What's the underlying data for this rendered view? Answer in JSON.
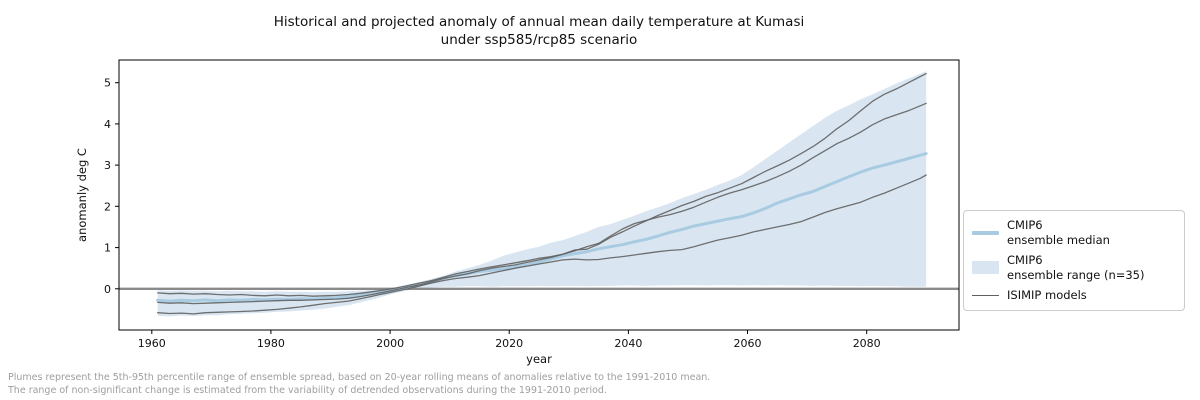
{
  "title": {
    "line1": "Historical and projected anomaly of annual mean daily temperature at Kumasi",
    "line2": "under ssp585/rcp85 scenario"
  },
  "legend": {
    "items": [
      {
        "swatch": "thick-line",
        "label": "CMIP6\nensemble median"
      },
      {
        "swatch": "patch",
        "label": "CMIP6\nensemble range (n=35)"
      },
      {
        "swatch": "thin-line",
        "label": "ISIMIP models"
      }
    ]
  },
  "footnote": {
    "line1": "Plumes represent the 5th-95th percentile range of ensemble spread, based on 20-year rolling means of anomalies relative to the 1991-2010 mean.",
    "line2": "The range of non-significant change is estimated from the variability of detrended observations during the 1991-2010 period."
  },
  "colors": {
    "band": "#d9e6f2",
    "median": "#a8cbe2",
    "isimip": "#606060",
    "zero_line": "#8a8a8a",
    "spine": "#000000",
    "tick_label": "#111111"
  },
  "chart_data": {
    "type": "line",
    "title": "Historical and projected anomaly of annual mean daily temperature at Kumasi under ssp585/rcp85 scenario",
    "xlabel": "year",
    "ylabel": "anomanly deg C",
    "xlim": [
      1954.5,
      2095.5
    ],
    "ylim": [
      -1.0,
      5.55
    ],
    "x_ticks": [
      1960,
      1980,
      2000,
      2020,
      2040,
      2060,
      2080
    ],
    "y_ticks": [
      0,
      1,
      2,
      3,
      4,
      5
    ],
    "grid": false,
    "legend_position": "right-outside",
    "zero_line": 0,
    "years": [
      1961,
      1963,
      1965,
      1967,
      1969,
      1971,
      1973,
      1975,
      1977,
      1979,
      1981,
      1983,
      1985,
      1987,
      1989,
      1991,
      1993,
      1995,
      1997,
      1999,
      2001,
      2003,
      2005,
      2007,
      2009,
      2011,
      2013,
      2015,
      2017,
      2019,
      2021,
      2023,
      2025,
      2027,
      2029,
      2031,
      2033,
      2035,
      2037,
      2039,
      2041,
      2043,
      2045,
      2047,
      2049,
      2051,
      2053,
      2055,
      2057,
      2059,
      2061,
      2063,
      2065,
      2067,
      2069,
      2071,
      2073,
      2075,
      2077,
      2079,
      2081,
      2083,
      2085,
      2087,
      2089,
      2090
    ],
    "band": {
      "label": "CMIP6 ensemble range (n=35)",
      "upper": [
        -0.04,
        -0.05,
        -0.04,
        -0.05,
        -0.05,
        -0.06,
        -0.05,
        -0.06,
        -0.06,
        -0.07,
        -0.06,
        -0.07,
        -0.07,
        -0.08,
        -0.07,
        -0.07,
        -0.06,
        -0.05,
        -0.03,
        0.0,
        0.04,
        0.1,
        0.17,
        0.24,
        0.32,
        0.42,
        0.5,
        0.58,
        0.68,
        0.8,
        0.88,
        0.96,
        1.02,
        1.12,
        1.18,
        1.28,
        1.38,
        1.5,
        1.57,
        1.67,
        1.77,
        1.88,
        1.98,
        2.08,
        2.2,
        2.3,
        2.4,
        2.52,
        2.62,
        2.76,
        2.95,
        3.15,
        3.35,
        3.55,
        3.75,
        3.95,
        4.15,
        4.32,
        4.45,
        4.6,
        4.72,
        4.85,
        4.98,
        5.1,
        5.22,
        5.28
      ],
      "lower": [
        -0.66,
        -0.67,
        -0.65,
        -0.66,
        -0.64,
        -0.64,
        -0.62,
        -0.61,
        -0.59,
        -0.58,
        -0.56,
        -0.55,
        -0.53,
        -0.51,
        -0.48,
        -0.44,
        -0.4,
        -0.33,
        -0.26,
        -0.18,
        -0.1,
        -0.04,
        0.0,
        0.03,
        0.05,
        0.05,
        0.06,
        0.06,
        0.05,
        0.06,
        0.06,
        0.06,
        0.07,
        0.06,
        0.07,
        0.07,
        0.06,
        0.07,
        0.07,
        0.08,
        0.08,
        0.07,
        0.08,
        0.08,
        0.09,
        0.09,
        0.08,
        0.09,
        0.09,
        0.08,
        0.09,
        0.08,
        0.09,
        0.08,
        0.08,
        0.07,
        0.08,
        0.07,
        0.07,
        0.06,
        0.07,
        0.06,
        0.06,
        0.05,
        0.05,
        0.05
      ]
    },
    "series": [
      {
        "name": "CMIP6 ensemble median",
        "role": "median",
        "values": [
          -0.28,
          -0.3,
          -0.28,
          -0.29,
          -0.27,
          -0.29,
          -0.27,
          -0.28,
          -0.26,
          -0.27,
          -0.25,
          -0.26,
          -0.24,
          -0.25,
          -0.23,
          -0.22,
          -0.19,
          -0.16,
          -0.12,
          -0.08,
          -0.02,
          0.03,
          0.1,
          0.18,
          0.26,
          0.32,
          0.37,
          0.42,
          0.45,
          0.48,
          0.53,
          0.58,
          0.65,
          0.72,
          0.8,
          0.85,
          0.9,
          0.97,
          1.02,
          1.07,
          1.14,
          1.2,
          1.28,
          1.37,
          1.44,
          1.52,
          1.58,
          1.64,
          1.7,
          1.75,
          1.84,
          1.95,
          2.08,
          2.18,
          2.28,
          2.36,
          2.48,
          2.6,
          2.72,
          2.83,
          2.93,
          3.0,
          3.08,
          3.16,
          3.24,
          3.28
        ]
      },
      {
        "name": "ISIMIP model 1",
        "role": "isimip",
        "values": [
          -0.1,
          -0.12,
          -0.11,
          -0.13,
          -0.12,
          -0.14,
          -0.15,
          -0.14,
          -0.16,
          -0.17,
          -0.15,
          -0.17,
          -0.16,
          -0.18,
          -0.17,
          -0.16,
          -0.14,
          -0.11,
          -0.07,
          -0.03,
          0.02,
          0.08,
          0.14,
          0.2,
          0.28,
          0.36,
          0.42,
          0.48,
          0.53,
          0.58,
          0.63,
          0.68,
          0.74,
          0.78,
          0.84,
          0.94,
          0.96,
          1.08,
          1.25,
          1.38,
          1.52,
          1.65,
          1.78,
          1.9,
          2.02,
          2.12,
          2.24,
          2.33,
          2.44,
          2.55,
          2.7,
          2.85,
          2.98,
          3.12,
          3.28,
          3.45,
          3.65,
          3.88,
          4.08,
          4.32,
          4.55,
          4.72,
          4.85,
          5.0,
          5.15,
          5.22
        ]
      },
      {
        "name": "ISIMIP model 2",
        "role": "isimip",
        "values": [
          -0.33,
          -0.35,
          -0.34,
          -0.36,
          -0.35,
          -0.34,
          -0.33,
          -0.32,
          -0.31,
          -0.3,
          -0.29,
          -0.28,
          -0.28,
          -0.27,
          -0.26,
          -0.25,
          -0.23,
          -0.19,
          -0.14,
          -0.08,
          -0.02,
          0.04,
          0.1,
          0.17,
          0.25,
          0.31,
          0.36,
          0.44,
          0.5,
          0.54,
          0.58,
          0.64,
          0.7,
          0.76,
          0.84,
          0.92,
          1.02,
          1.1,
          1.28,
          1.45,
          1.58,
          1.66,
          1.74,
          1.8,
          1.88,
          1.98,
          2.1,
          2.22,
          2.32,
          2.4,
          2.5,
          2.6,
          2.72,
          2.85,
          3.0,
          3.18,
          3.35,
          3.52,
          3.65,
          3.8,
          3.98,
          4.12,
          4.22,
          4.32,
          4.44,
          4.5
        ]
      },
      {
        "name": "ISIMIP model 3",
        "role": "isimip",
        "values": [
          -0.58,
          -0.6,
          -0.59,
          -0.61,
          -0.58,
          -0.57,
          -0.56,
          -0.55,
          -0.54,
          -0.52,
          -0.5,
          -0.47,
          -0.44,
          -0.4,
          -0.36,
          -0.33,
          -0.3,
          -0.24,
          -0.18,
          -0.12,
          -0.06,
          0.0,
          0.07,
          0.14,
          0.2,
          0.25,
          0.28,
          0.32,
          0.38,
          0.44,
          0.5,
          0.55,
          0.6,
          0.65,
          0.7,
          0.72,
          0.7,
          0.71,
          0.75,
          0.78,
          0.82,
          0.86,
          0.9,
          0.93,
          0.95,
          1.02,
          1.1,
          1.18,
          1.24,
          1.3,
          1.38,
          1.44,
          1.5,
          1.56,
          1.63,
          1.74,
          1.85,
          1.94,
          2.02,
          2.1,
          2.22,
          2.32,
          2.44,
          2.56,
          2.68,
          2.76
        ]
      }
    ]
  }
}
